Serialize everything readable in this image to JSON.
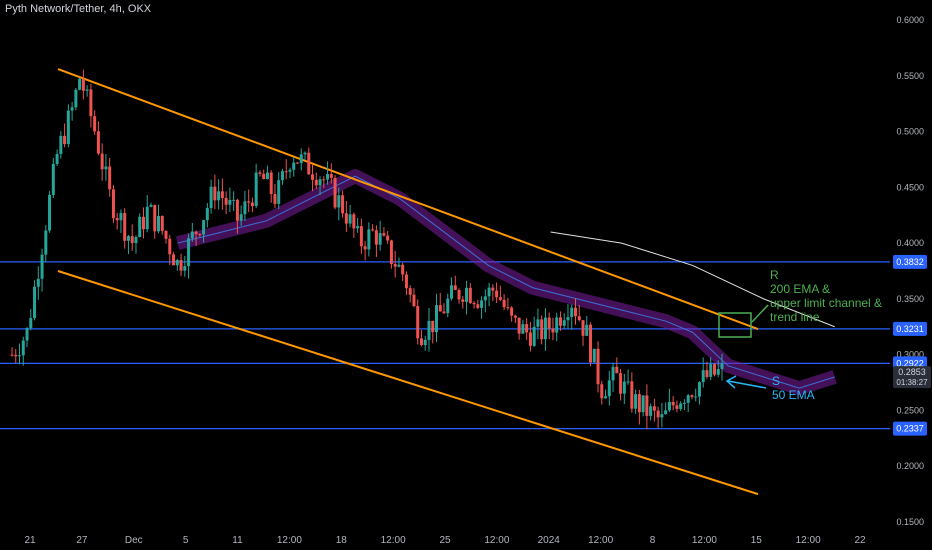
{
  "header": {
    "title": "Pyth Network/Tether, 4h, OKX"
  },
  "annotations": {
    "resistance": [
      "R",
      "200 EMA &",
      "upper limit channel &",
      "trend line"
    ],
    "support": [
      "S",
      "50 EMA"
    ]
  },
  "chart_data": {
    "type": "candlestick",
    "title": "Pyth Network/Tether, 4h, OKX",
    "ylim": [
      0.15,
      0.6
    ],
    "yticks": [
      "0.6000",
      "0.5500",
      "0.5000",
      "0.4500",
      "0.4000",
      "0.3500",
      "0.3000",
      "0.2500",
      "0.2000",
      "0.1500"
    ],
    "xticks": [
      "21",
      "27",
      "Dec",
      "5",
      "11",
      "12:00",
      "18",
      "12:00",
      "25",
      "12:00",
      "2024",
      "12:00",
      "8",
      "12:00",
      "15",
      "12:00",
      "22"
    ],
    "horizontal_levels": [
      {
        "value": 0.3832,
        "label": "0.3832",
        "color": "#2962ff"
      },
      {
        "value": 0.3231,
        "label": "0.3231",
        "color": "#2962ff"
      },
      {
        "value": 0.2922,
        "label": "0.2922",
        "color": "#2962ff"
      },
      {
        "value": 0.2337,
        "label": "0.2337",
        "color": "#2962ff"
      }
    ],
    "current_price": {
      "value": 0.2853,
      "label": "0.2853",
      "countdown": "01:38:27"
    },
    "channel_lines": [
      {
        "name": "upper channel",
        "from": [
          0.0,
          0.556
        ],
        "to": [
          1.0,
          0.323
        ],
        "color": "#ff9800"
      },
      {
        "name": "lower channel",
        "from": [
          0.0,
          0.375
        ],
        "to": [
          1.0,
          0.175
        ],
        "color": "#ff9800"
      }
    ],
    "price_path": [
      [
        0.0,
        0.3
      ],
      [
        0.02,
        0.32
      ],
      [
        0.04,
        0.4
      ],
      [
        0.06,
        0.48
      ],
      [
        0.08,
        0.52
      ],
      [
        0.09,
        0.55
      ],
      [
        0.11,
        0.5
      ],
      [
        0.13,
        0.44
      ],
      [
        0.16,
        0.4
      ],
      [
        0.18,
        0.43
      ],
      [
        0.2,
        0.41
      ],
      [
        0.22,
        0.38
      ],
      [
        0.25,
        0.42
      ],
      [
        0.27,
        0.45
      ],
      [
        0.3,
        0.42
      ],
      [
        0.33,
        0.46
      ],
      [
        0.35,
        0.44
      ],
      [
        0.37,
        0.48
      ],
      [
        0.39,
        0.47
      ],
      [
        0.41,
        0.46
      ],
      [
        0.44,
        0.43
      ],
      [
        0.46,
        0.4
      ],
      [
        0.48,
        0.41
      ],
      [
        0.5,
        0.39
      ],
      [
        0.52,
        0.37
      ],
      [
        0.54,
        0.32
      ],
      [
        0.56,
        0.33
      ],
      [
        0.58,
        0.35
      ],
      [
        0.6,
        0.36
      ],
      [
        0.62,
        0.35
      ],
      [
        0.64,
        0.36
      ],
      [
        0.66,
        0.33
      ],
      [
        0.68,
        0.32
      ],
      [
        0.7,
        0.32
      ],
      [
        0.72,
        0.33
      ],
      [
        0.74,
        0.35
      ],
      [
        0.76,
        0.32
      ],
      [
        0.78,
        0.27
      ],
      [
        0.8,
        0.28
      ],
      [
        0.82,
        0.26
      ],
      [
        0.84,
        0.25
      ],
      [
        0.86,
        0.24
      ],
      [
        0.88,
        0.26
      ],
      [
        0.9,
        0.27
      ],
      [
        0.92,
        0.28
      ],
      [
        0.94,
        0.285
      ]
    ],
    "ema_50_path": [
      [
        0.2,
        0.4
      ],
      [
        0.25,
        0.41
      ],
      [
        0.3,
        0.42
      ],
      [
        0.35,
        0.44
      ],
      [
        0.4,
        0.46
      ],
      [
        0.45,
        0.44
      ],
      [
        0.5,
        0.41
      ],
      [
        0.55,
        0.38
      ],
      [
        0.6,
        0.36
      ],
      [
        0.65,
        0.35
      ],
      [
        0.7,
        0.34
      ],
      [
        0.75,
        0.33
      ],
      [
        0.78,
        0.32
      ],
      [
        0.82,
        0.29
      ],
      [
        0.86,
        0.28
      ],
      [
        0.9,
        0.27
      ],
      [
        0.94,
        0.28
      ]
    ],
    "ema_200_path": [
      [
        0.62,
        0.41
      ],
      [
        0.7,
        0.4
      ],
      [
        0.78,
        0.38
      ],
      [
        0.86,
        0.35
      ],
      [
        0.94,
        0.325
      ]
    ],
    "colors": {
      "up": "#26a69a",
      "down": "#ef5350",
      "ema50": "#7b1fa2",
      "ema200": "#e0e0e0",
      "box": "#4caf50",
      "arrow": "#29b6f6"
    }
  }
}
